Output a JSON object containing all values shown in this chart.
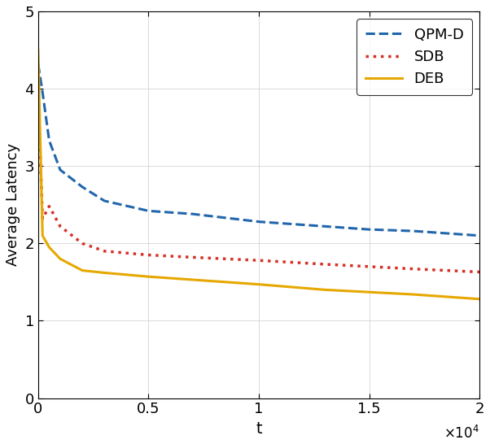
{
  "title": "",
  "xlabel": "t",
  "ylabel": "Average Latency",
  "xlim": [
    0,
    20000
  ],
  "ylim": [
    0,
    5
  ],
  "xticks": [
    0,
    5000,
    10000,
    15000,
    20000
  ],
  "xtick_labels": [
    "0",
    "0.5",
    "1",
    "1.5",
    "2"
  ],
  "xtick_exp": "\\times10^{4}",
  "yticks": [
    0,
    1,
    2,
    3,
    4,
    5
  ],
  "series": {
    "QPM-D": {
      "color": "#2166ac",
      "linestyle": "dashed",
      "linewidth": 2.2,
      "x": [
        0,
        200,
        500,
        1000,
        2000,
        3000,
        5000,
        7000,
        10000,
        13000,
        15000,
        17000,
        20000
      ],
      "y": [
        4.32,
        3.95,
        3.33,
        2.95,
        2.73,
        2.55,
        2.42,
        2.38,
        2.28,
        2.22,
        2.18,
        2.16,
        2.1
      ]
    },
    "SDB": {
      "color": "#d73027",
      "linestyle": "dotted",
      "linewidth": 2.5,
      "x": [
        0,
        200,
        500,
        1000,
        2000,
        3000,
        5000,
        7000,
        10000,
        13000,
        15000,
        17000,
        20000
      ],
      "y": [
        3.9,
        2.32,
        2.48,
        2.22,
        2.0,
        1.9,
        1.85,
        1.82,
        1.78,
        1.73,
        1.7,
        1.67,
        1.63
      ]
    },
    "DEB": {
      "color": "#e6a800",
      "linestyle": "solid",
      "linewidth": 2.2,
      "x": [
        0,
        200,
        500,
        1000,
        2000,
        3000,
        5000,
        7000,
        10000,
        13000,
        15000,
        17000,
        20000
      ],
      "y": [
        4.5,
        2.1,
        1.95,
        1.8,
        1.65,
        1.62,
        1.57,
        1.53,
        1.47,
        1.4,
        1.37,
        1.34,
        1.28
      ]
    }
  },
  "legend_loc": "upper right",
  "grid": true,
  "background_color": "#ffffff"
}
